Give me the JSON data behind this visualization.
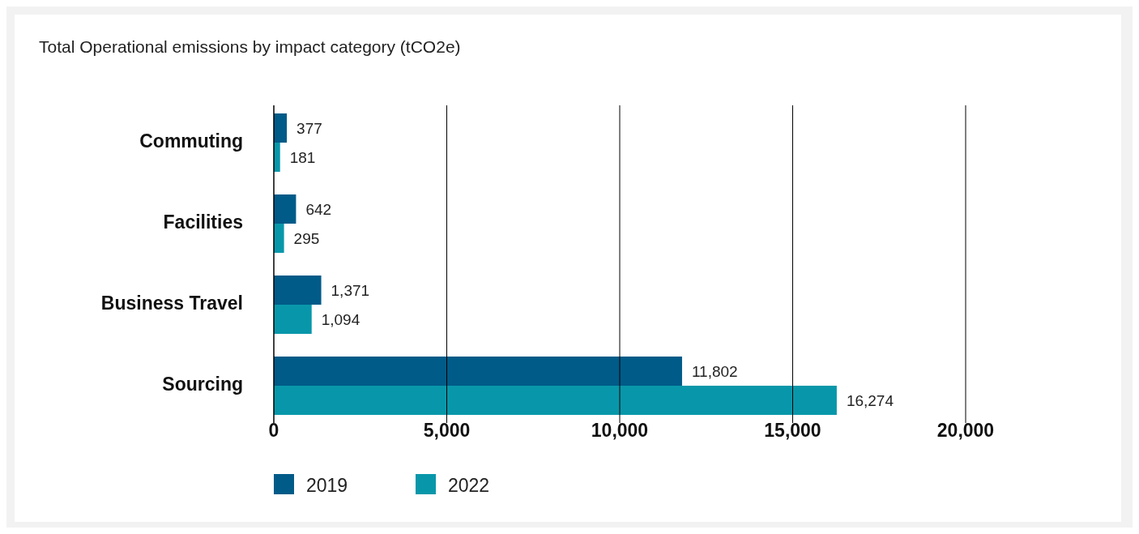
{
  "chart_data": {
    "type": "bar",
    "orientation": "horizontal",
    "title": "Total Operational emissions by impact category (tCO2e)",
    "categories": [
      "Commuting",
      "Facilities",
      "Business Travel",
      "Sourcing"
    ],
    "series": [
      {
        "name": "2019",
        "color": "#005b88",
        "values": [
          377,
          642,
          1371,
          11802
        ],
        "value_labels": [
          "377",
          "642",
          "1,371",
          "11,802"
        ]
      },
      {
        "name": "2022",
        "color": "#0897aa",
        "values": [
          181,
          295,
          1094,
          16274
        ],
        "value_labels": [
          "181",
          "295",
          "1,094",
          "16,274"
        ]
      }
    ],
    "xlim": [
      0,
      20000
    ],
    "xticks": [
      {
        "value": 0,
        "label": "0"
      },
      {
        "value": 5000,
        "label": "5,000"
      },
      {
        "value": 10000,
        "label": "10,000"
      },
      {
        "value": 15000,
        "label": "15,000"
      },
      {
        "value": 20000,
        "label": "20,000"
      }
    ],
    "grid": "x",
    "legend": "bottom"
  }
}
